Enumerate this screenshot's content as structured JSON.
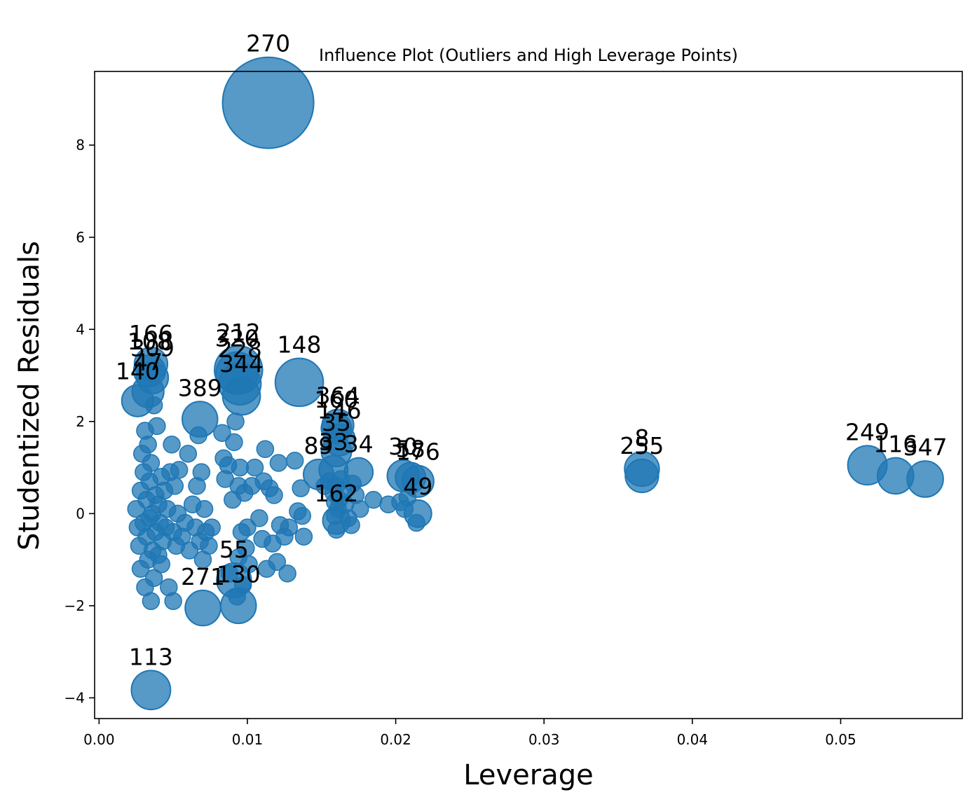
{
  "chart_data": {
    "type": "scatter",
    "title": "Influence Plot (Outliers and High Leverage Points)",
    "xlabel": "Leverage",
    "ylabel": "Studentized Residuals",
    "xlim": [
      -0.0003,
      0.0582
    ],
    "ylim": [
      -4.45,
      9.6
    ],
    "xticks": [
      0.0,
      0.01,
      0.02,
      0.03,
      0.04,
      0.05
    ],
    "xtick_labels": [
      "0.00",
      "0.01",
      "0.02",
      "0.03",
      "0.04",
      "0.05"
    ],
    "yticks": [
      -4,
      -2,
      0,
      2,
      4,
      6,
      8
    ],
    "ytick_labels": [
      "−4",
      "−2",
      "0",
      "2",
      "4",
      "6",
      "8"
    ],
    "marker_color": "#1f77b4",
    "marker_alpha": 0.75,
    "grid": false,
    "labeled_points": [
      {
        "label": "270",
        "x": 0.0114,
        "y": 8.92,
        "size": 1.0
      },
      {
        "label": "148",
        "x": 0.0135,
        "y": 2.85,
        "size": 0.42
      },
      {
        "label": "212",
        "x": 0.0094,
        "y": 3.12,
        "size": 0.42
      },
      {
        "label": "320",
        "x": 0.0093,
        "y": 3.05,
        "size": 0.34
      },
      {
        "label": "228",
        "x": 0.0095,
        "y": 2.82,
        "size": 0.34
      },
      {
        "label": "344",
        "x": 0.0096,
        "y": 2.55,
        "size": 0.28
      },
      {
        "label": "389",
        "x": 0.0068,
        "y": 2.05,
        "size": 0.25
      },
      {
        "label": "166",
        "x": 0.0035,
        "y": 3.25,
        "size": 0.22
      },
      {
        "label": "108",
        "x": 0.0034,
        "y": 3.1,
        "size": 0.2
      },
      {
        "label": "309",
        "x": 0.0036,
        "y": 2.95,
        "size": 0.2
      },
      {
        "label": "140",
        "x": 0.0026,
        "y": 2.45,
        "size": 0.2
      },
      {
        "label": "47",
        "x": 0.0033,
        "y": 2.65,
        "size": 0.2
      },
      {
        "label": "364",
        "x": 0.0161,
        "y": 1.92,
        "size": 0.2
      },
      {
        "label": "160",
        "x": 0.016,
        "y": 1.85,
        "size": 0.18
      },
      {
        "label": "146",
        "x": 0.0162,
        "y": 1.6,
        "size": 0.2
      },
      {
        "label": "35",
        "x": 0.016,
        "y": 1.35,
        "size": 0.18
      },
      {
        "label": "89",
        "x": 0.0148,
        "y": 0.85,
        "size": 0.18
      },
      {
        "label": "33",
        "x": 0.0158,
        "y": 0.95,
        "size": 0.16
      },
      {
        "label": "34",
        "x": 0.0175,
        "y": 0.9,
        "size": 0.16
      },
      {
        "label": "30",
        "x": 0.0205,
        "y": 0.82,
        "size": 0.2
      },
      {
        "label": "58",
        "x": 0.021,
        "y": 0.78,
        "size": 0.18
      },
      {
        "label": "176",
        "x": 0.0215,
        "y": 0.7,
        "size": 0.2
      },
      {
        "label": "8",
        "x": 0.0366,
        "y": 0.97,
        "size": 0.24
      },
      {
        "label": "255",
        "x": 0.0366,
        "y": 0.82,
        "size": 0.22
      },
      {
        "label": "249",
        "x": 0.0518,
        "y": 1.05,
        "size": 0.3
      },
      {
        "label": "116",
        "x": 0.0537,
        "y": 0.82,
        "size": 0.26
      },
      {
        "label": "347",
        "x": 0.0557,
        "y": 0.75,
        "size": 0.26
      },
      {
        "label": "49",
        "x": 0.0215,
        "y": 0.0,
        "size": 0.14
      },
      {
        "label": "162",
        "x": 0.016,
        "y": -0.15,
        "size": 0.14
      },
      {
        "label": "271",
        "x": 0.007,
        "y": -2.05,
        "size": 0.25
      },
      {
        "label": "55",
        "x": 0.0091,
        "y": -1.45,
        "size": 0.24
      },
      {
        "label": "130",
        "x": 0.0094,
        "y": -2.0,
        "size": 0.25
      },
      {
        "label": "113",
        "x": 0.0035,
        "y": -3.83,
        "size": 0.3
      }
    ],
    "other_points": [
      {
        "x": 0.0025,
        "y": 0.1
      },
      {
        "x": 0.0026,
        "y": -0.3
      },
      {
        "x": 0.0027,
        "y": -0.7
      },
      {
        "x": 0.0028,
        "y": -1.2
      },
      {
        "x": 0.0028,
        "y": 0.5
      },
      {
        "x": 0.0029,
        "y": 1.3
      },
      {
        "x": 0.003,
        "y": -0.2
      },
      {
        "x": 0.003,
        "y": 0.9
      },
      {
        "x": 0.0031,
        "y": -1.6
      },
      {
        "x": 0.0031,
        "y": 1.8
      },
      {
        "x": 0.0032,
        "y": -0.5
      },
      {
        "x": 0.0032,
        "y": 0.3
      },
      {
        "x": 0.0033,
        "y": -1.0
      },
      {
        "x": 0.0033,
        "y": 1.5
      },
      {
        "x": 0.0034,
        "y": -0.1
      },
      {
        "x": 0.0034,
        "y": 0.7
      },
      {
        "x": 0.0035,
        "y": -1.9
      },
      {
        "x": 0.0035,
        "y": 1.1
      },
      {
        "x": 0.0036,
        "y": -0.8
      },
      {
        "x": 0.0036,
        "y": 0.0
      },
      {
        "x": 0.0037,
        "y": 2.35
      },
      {
        "x": 0.0037,
        "y": -1.4
      },
      {
        "x": 0.0038,
        "y": 0.4
      },
      {
        "x": 0.0038,
        "y": -0.4
      },
      {
        "x": 0.0039,
        "y": 1.9
      },
      {
        "x": 0.004,
        "y": -0.9
      },
      {
        "x": 0.004,
        "y": 0.2
      },
      {
        "x": 0.0041,
        "y": -0.2
      },
      {
        "x": 0.0042,
        "y": 0.8
      },
      {
        "x": 0.0042,
        "y": -1.1
      },
      {
        "x": 0.0043,
        "y": -0.6
      },
      {
        "x": 0.0044,
        "y": 0.5
      },
      {
        "x": 0.0045,
        "y": -0.3
      },
      {
        "x": 0.0046,
        "y": 0.1
      },
      {
        "x": 0.0047,
        "y": -1.6
      },
      {
        "x": 0.0048,
        "y": 0.9
      },
      {
        "x": 0.0049,
        "y": 1.5
      },
      {
        "x": 0.005,
        "y": -0.4
      },
      {
        "x": 0.005,
        "y": -1.9
      },
      {
        "x": 0.0051,
        "y": 0.6
      },
      {
        "x": 0.0052,
        "y": -0.7
      },
      {
        "x": 0.0053,
        "y": 0.0
      },
      {
        "x": 0.0054,
        "y": 0.95
      },
      {
        "x": 0.0056,
        "y": -0.5
      },
      {
        "x": 0.0058,
        "y": -0.2
      },
      {
        "x": 0.006,
        "y": 1.3
      },
      {
        "x": 0.0061,
        "y": -0.8
      },
      {
        "x": 0.0063,
        "y": 0.2
      },
      {
        "x": 0.0065,
        "y": -0.3
      },
      {
        "x": 0.0066,
        "y": 0.6
      },
      {
        "x": 0.0067,
        "y": 1.7
      },
      {
        "x": 0.0068,
        "y": -0.6
      },
      {
        "x": 0.0069,
        "y": 0.9
      },
      {
        "x": 0.007,
        "y": -1.0
      },
      {
        "x": 0.0071,
        "y": 0.1
      },
      {
        "x": 0.0072,
        "y": -0.4
      },
      {
        "x": 0.0074,
        "y": -0.7
      },
      {
        "x": 0.0076,
        "y": -0.3
      },
      {
        "x": 0.0083,
        "y": 1.75
      },
      {
        "x": 0.0084,
        "y": 1.2
      },
      {
        "x": 0.0085,
        "y": 0.75
      },
      {
        "x": 0.0087,
        "y": 1.05
      },
      {
        "x": 0.0088,
        "y": -1.3
      },
      {
        "x": 0.009,
        "y": 0.3
      },
      {
        "x": 0.0091,
        "y": 1.55
      },
      {
        "x": 0.0092,
        "y": 2.0
      },
      {
        "x": 0.0093,
        "y": -1.8
      },
      {
        "x": 0.0094,
        "y": 0.6
      },
      {
        "x": 0.0094,
        "y": -0.95
      },
      {
        "x": 0.0095,
        "y": 1.0
      },
      {
        "x": 0.0096,
        "y": -0.4
      },
      {
        "x": 0.0097,
        "y": -1.55
      },
      {
        "x": 0.0098,
        "y": 0.45
      },
      {
        "x": 0.0099,
        "y": -0.75
      },
      {
        "x": 0.01,
        "y": -0.3
      },
      {
        "x": 0.0101,
        "y": -1.1
      },
      {
        "x": 0.0103,
        "y": 0.6
      },
      {
        "x": 0.0105,
        "y": 1.0
      },
      {
        "x": 0.0108,
        "y": -0.1
      },
      {
        "x": 0.011,
        "y": -0.55
      },
      {
        "x": 0.0111,
        "y": 0.7
      },
      {
        "x": 0.0112,
        "y": 1.4
      },
      {
        "x": 0.0113,
        "y": -1.2
      },
      {
        "x": 0.0115,
        "y": 0.55
      },
      {
        "x": 0.0117,
        "y": -0.65
      },
      {
        "x": 0.0118,
        "y": 0.4
      },
      {
        "x": 0.012,
        "y": -1.05
      },
      {
        "x": 0.0121,
        "y": 1.1
      },
      {
        "x": 0.0122,
        "y": -0.25
      },
      {
        "x": 0.0125,
        "y": -0.5
      },
      {
        "x": 0.0127,
        "y": -1.3
      },
      {
        "x": 0.0128,
        "y": -0.3
      },
      {
        "x": 0.0132,
        "y": 1.15
      },
      {
        "x": 0.0134,
        "y": 0.05
      },
      {
        "x": 0.0136,
        "y": 0.55
      },
      {
        "x": 0.0137,
        "y": -0.05
      },
      {
        "x": 0.0138,
        "y": -0.5
      },
      {
        "x": 0.0152,
        "y": 0.6
      },
      {
        "x": 0.0155,
        "y": 0.7
      },
      {
        "x": 0.0158,
        "y": 0.45
      },
      {
        "x": 0.0159,
        "y": 0.25
      },
      {
        "x": 0.0159,
        "y": -0.05
      },
      {
        "x": 0.016,
        "y": 0.6
      },
      {
        "x": 0.016,
        "y": -0.35
      },
      {
        "x": 0.0161,
        "y": 0.1
      },
      {
        "x": 0.0162,
        "y": 0.3
      },
      {
        "x": 0.0163,
        "y": 0.75
      },
      {
        "x": 0.0165,
        "y": 0.5
      },
      {
        "x": 0.0166,
        "y": 0.2
      },
      {
        "x": 0.0168,
        "y": -0.1
      },
      {
        "x": 0.017,
        "y": -0.25
      },
      {
        "x": 0.0171,
        "y": 0.65
      },
      {
        "x": 0.0173,
        "y": 0.4
      },
      {
        "x": 0.0176,
        "y": 0.1
      },
      {
        "x": 0.0185,
        "y": 0.3
      },
      {
        "x": 0.0195,
        "y": 0.2
      },
      {
        "x": 0.0203,
        "y": 0.25
      },
      {
        "x": 0.0206,
        "y": 0.1
      },
      {
        "x": 0.0208,
        "y": 0.35
      },
      {
        "x": 0.0214,
        "y": -0.2
      }
    ]
  }
}
